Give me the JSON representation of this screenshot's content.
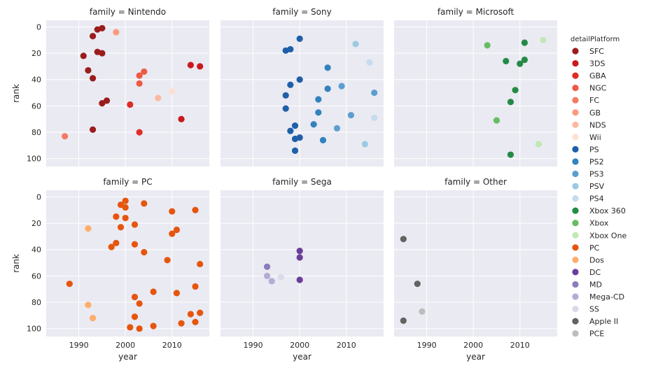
{
  "chart_data": {
    "type": "scatter",
    "facet_by": "family",
    "xlabel": "year",
    "ylabel": "rank",
    "xlim": [
      1983,
      2018
    ],
    "ylim": [
      106,
      -5
    ],
    "y_inverted": true,
    "xticks": [
      1990,
      2000,
      2010
    ],
    "yticks": [
      0,
      20,
      40,
      60,
      80,
      100
    ],
    "grid": true,
    "legend_title": "detailPlatform",
    "legend_position": "right",
    "panels": [
      {
        "title": "family = Nintendo",
        "series": [
          {
            "name": "SFC",
            "color": "#9b1c1c",
            "points": [
              [
                1994,
                2
              ],
              [
                1995,
                1
              ],
              [
                1993,
                7
              ],
              [
                1991,
                22
              ],
              [
                1994,
                19
              ],
              [
                1995,
                20
              ],
              [
                1992,
                33
              ],
              [
                1993,
                39
              ],
              [
                1995,
                58
              ],
              [
                1996,
                56
              ],
              [
                1993,
                78
              ]
            ]
          },
          {
            "name": "3DS",
            "color": "#cb181d",
            "points": [
              [
                2014,
                29
              ],
              [
                2016,
                30
              ],
              [
                2012,
                70
              ]
            ]
          },
          {
            "name": "GBA",
            "color": "#de2d26",
            "points": [
              [
                2001,
                59
              ],
              [
                2003,
                80
              ]
            ]
          },
          {
            "name": "NGC",
            "color": "#ef5a45",
            "points": [
              [
                2004,
                34
              ],
              [
                2003,
                37
              ],
              [
                2003,
                43
              ]
            ]
          },
          {
            "name": "FC",
            "color": "#f47a63",
            "points": [
              [
                1987,
                83
              ]
            ]
          },
          {
            "name": "GB",
            "color": "#fb9a7f",
            "points": [
              [
                1998,
                4
              ]
            ]
          },
          {
            "name": "NDS",
            "color": "#fcb9a0",
            "points": [
              [
                2007,
                54
              ]
            ]
          },
          {
            "name": "Wii",
            "color": "#fee0d2",
            "points": [
              [
                2010,
                49
              ]
            ]
          }
        ]
      },
      {
        "title": "family = Sony",
        "series": [
          {
            "name": "PS",
            "color": "#1f5fa8",
            "points": [
              [
                2000,
                9
              ],
              [
                1997,
                18
              ],
              [
                1998,
                17
              ],
              [
                1998,
                44
              ],
              [
                2000,
                40
              ],
              [
                1997,
                52
              ],
              [
                1997,
                62
              ],
              [
                1998,
                79
              ],
              [
                1999,
                75
              ],
              [
                1999,
                85
              ],
              [
                2000,
                84
              ],
              [
                1999,
                94
              ]
            ]
          },
          {
            "name": "PS2",
            "color": "#3182bd",
            "points": [
              [
                2006,
                31
              ],
              [
                2006,
                47
              ],
              [
                2004,
                55
              ],
              [
                2004,
                65
              ],
              [
                2003,
                74
              ],
              [
                2005,
                86
              ]
            ]
          },
          {
            "name": "PS3",
            "color": "#5b9fd0",
            "points": [
              [
                2009,
                45
              ],
              [
                2016,
                50
              ],
              [
                2011,
                67
              ],
              [
                2008,
                77
              ]
            ]
          },
          {
            "name": "PSV",
            "color": "#9ecae1",
            "points": [
              [
                2012,
                13
              ],
              [
                2014,
                89
              ]
            ]
          },
          {
            "name": "PS4",
            "color": "#c6dbef",
            "points": [
              [
                2015,
                27
              ],
              [
                2016,
                69
              ]
            ]
          }
        ]
      },
      {
        "title": "family = Microsoft",
        "series": [
          {
            "name": "Xbox 360",
            "color": "#238b45",
            "points": [
              [
                2011,
                12
              ],
              [
                2011,
                25
              ],
              [
                2007,
                26
              ],
              [
                2010,
                28
              ],
              [
                2009,
                48
              ],
              [
                2008,
                57
              ],
              [
                2008,
                97
              ]
            ]
          },
          {
            "name": "Xbox",
            "color": "#66bd63",
            "points": [
              [
                2003,
                14
              ],
              [
                2005,
                71
              ]
            ]
          },
          {
            "name": "Xbox One",
            "color": "#c2e8b5",
            "points": [
              [
                2015,
                10
              ],
              [
                2014,
                89
              ]
            ]
          }
        ]
      },
      {
        "title": "family = PC",
        "series": [
          {
            "name": "PC",
            "color": "#e6550d",
            "points": [
              [
                2000,
                3
              ],
              [
                1999,
                6
              ],
              [
                2000,
                8
              ],
              [
                2004,
                5
              ],
              [
                2010,
                11
              ],
              [
                2015,
                10
              ],
              [
                1998,
                15
              ],
              [
                2000,
                16
              ],
              [
                2002,
                21
              ],
              [
                1999,
                23
              ],
              [
                2011,
                25
              ],
              [
                2010,
                28
              ],
              [
                1998,
                35
              ],
              [
                1997,
                38
              ],
              [
                2002,
                36
              ],
              [
                2004,
                42
              ],
              [
                2009,
                48
              ],
              [
                2016,
                51
              ],
              [
                1988,
                66
              ],
              [
                2015,
                68
              ],
              [
                2006,
                72
              ],
              [
                2011,
                73
              ],
              [
                2002,
                76
              ],
              [
                2003,
                81
              ],
              [
                2014,
                89
              ],
              [
                2016,
                88
              ],
              [
                2002,
                91
              ],
              [
                2012,
                96
              ],
              [
                2015,
                95
              ],
              [
                2001,
                99
              ],
              [
                2003,
                100
              ],
              [
                2006,
                98
              ]
            ]
          },
          {
            "name": "Dos",
            "color": "#fdae6b",
            "points": [
              [
                1992,
                24
              ],
              [
                1992,
                82
              ],
              [
                1993,
                92
              ]
            ]
          }
        ]
      },
      {
        "title": "family = Sega",
        "series": [
          {
            "name": "DC",
            "color": "#6a3d9a",
            "points": [
              [
                2000,
                41
              ],
              [
                2000,
                46
              ],
              [
                2000,
                63
              ]
            ]
          },
          {
            "name": "MD",
            "color": "#8c7bbd",
            "points": [
              [
                1993,
                53
              ]
            ]
          },
          {
            "name": "Mega-CD",
            "color": "#b4abd6",
            "points": [
              [
                1993,
                60
              ],
              [
                1994,
                64
              ]
            ]
          },
          {
            "name": "SS",
            "color": "#dadaeb",
            "points": [
              [
                1996,
                61
              ]
            ]
          }
        ]
      },
      {
        "title": "family = Other",
        "series": [
          {
            "name": "Apple II",
            "color": "#636363",
            "points": [
              [
                1985,
                32
              ],
              [
                1988,
                66
              ],
              [
                1985,
                94
              ]
            ]
          },
          {
            "name": "PCE",
            "color": "#bdbdbd",
            "points": [
              [
                1989,
                87
              ]
            ]
          }
        ]
      }
    ]
  }
}
